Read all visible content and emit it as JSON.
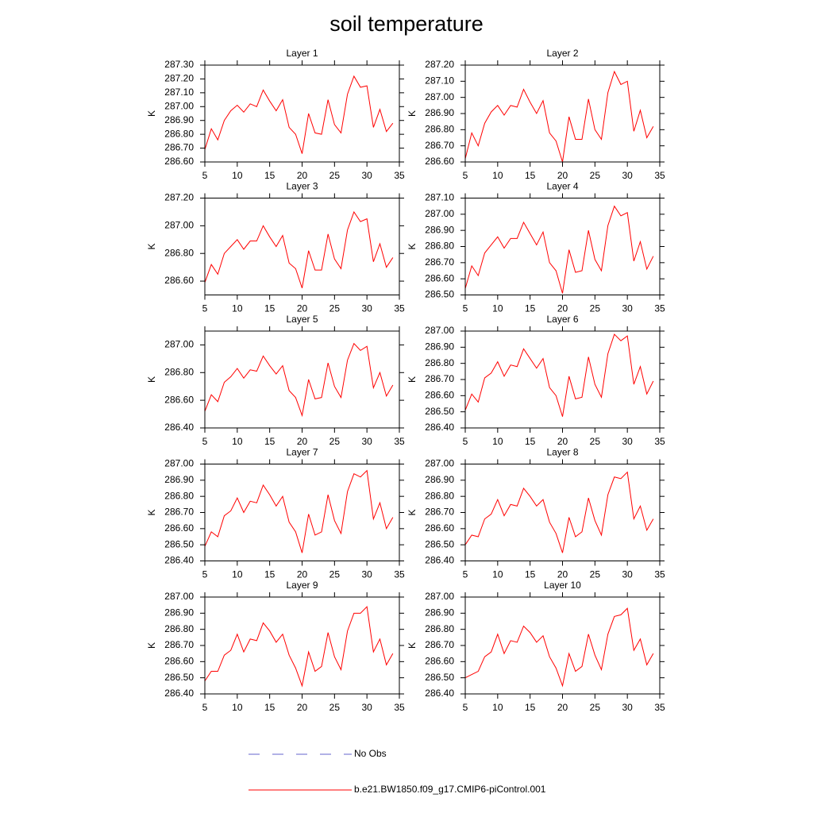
{
  "title": "soil temperature",
  "legend": [
    {
      "label": "No Obs",
      "color": "#6666cc",
      "dash": true
    },
    {
      "label": "b.e21.BW1850.f09_g17.CMIP6-piControl.001",
      "color": "#ff0000",
      "dash": false
    }
  ],
  "chart_data": [
    {
      "type": "line",
      "title": "Layer 1",
      "ylabel": "K",
      "x": [
        5,
        6,
        7,
        8,
        9,
        10,
        11,
        12,
        13,
        14,
        15,
        16,
        17,
        18,
        19,
        20,
        21,
        22,
        23,
        24,
        25,
        26,
        27,
        28,
        29,
        30,
        31,
        32,
        33,
        34
      ],
      "series": [
        {
          "color": "#ff0000",
          "values": [
            286.69,
            286.84,
            286.76,
            286.9,
            286.97,
            287.01,
            286.96,
            287.02,
            287.0,
            287.12,
            287.04,
            286.97,
            287.05,
            286.85,
            286.8,
            286.66,
            286.95,
            286.81,
            286.8,
            287.05,
            286.87,
            286.81,
            287.09,
            287.22,
            287.14,
            287.15,
            286.85,
            286.98,
            286.82,
            286.88
          ]
        }
      ],
      "xlim": [
        5,
        35
      ],
      "xticks": [
        5,
        10,
        15,
        20,
        25,
        30,
        35
      ],
      "ylim": [
        286.6,
        287.3
      ],
      "yticks": [
        {
          "value": 286.6,
          "label": "286.60"
        },
        {
          "value": 286.7,
          "label": "286.70"
        },
        {
          "value": 286.8,
          "label": "286.80"
        },
        {
          "value": 286.9,
          "label": "286.90"
        },
        {
          "value": 287.0,
          "label": "287.00"
        },
        {
          "value": 287.1,
          "label": "287.10"
        },
        {
          "value": 287.2,
          "label": "287.20"
        },
        {
          "value": 287.3,
          "label": "287.30"
        }
      ]
    },
    {
      "type": "line",
      "title": "Layer 2",
      "ylabel": "K",
      "x": [
        5,
        6,
        7,
        8,
        9,
        10,
        11,
        12,
        13,
        14,
        15,
        16,
        17,
        18,
        19,
        20,
        21,
        22,
        23,
        24,
        25,
        26,
        27,
        28,
        29,
        30,
        31,
        32,
        33,
        34
      ],
      "series": [
        {
          "color": "#ff0000",
          "values": [
            286.62,
            286.78,
            286.7,
            286.84,
            286.91,
            286.95,
            286.89,
            286.95,
            286.94,
            287.05,
            286.97,
            286.9,
            286.98,
            286.78,
            286.73,
            286.6,
            286.88,
            286.74,
            286.74,
            286.99,
            286.8,
            286.74,
            287.03,
            287.16,
            287.08,
            287.1,
            286.79,
            286.92,
            286.75,
            286.82
          ]
        }
      ],
      "xlim": [
        5,
        35
      ],
      "xticks": [
        5,
        10,
        15,
        20,
        25,
        30,
        35
      ],
      "ylim": [
        286.6,
        287.2
      ],
      "yticks": [
        {
          "value": 286.6,
          "label": "286.60"
        },
        {
          "value": 286.7,
          "label": "286.70"
        },
        {
          "value": 286.8,
          "label": "286.80"
        },
        {
          "value": 286.9,
          "label": "286.90"
        },
        {
          "value": 287.0,
          "label": "287.00"
        },
        {
          "value": 287.1,
          "label": "287.10"
        },
        {
          "value": 287.2,
          "label": "287.20"
        }
      ]
    },
    {
      "type": "line",
      "title": "Layer 3",
      "ylabel": "K",
      "x": [
        5,
        6,
        7,
        8,
        9,
        10,
        11,
        12,
        13,
        14,
        15,
        16,
        17,
        18,
        19,
        20,
        21,
        22,
        23,
        24,
        25,
        26,
        27,
        28,
        29,
        30,
        31,
        32,
        33,
        34
      ],
      "series": [
        {
          "color": "#ff0000",
          "values": [
            286.59,
            286.72,
            286.65,
            286.8,
            286.85,
            286.9,
            286.83,
            286.89,
            286.89,
            287.0,
            286.92,
            286.85,
            286.93,
            286.73,
            286.69,
            286.55,
            286.82,
            286.68,
            286.68,
            286.94,
            286.76,
            286.69,
            286.97,
            287.1,
            287.03,
            287.05,
            286.74,
            286.87,
            286.7,
            286.77
          ]
        }
      ],
      "xlim": [
        5,
        35
      ],
      "xticks": [
        5,
        10,
        15,
        20,
        25,
        30,
        35
      ],
      "ylim": [
        286.5,
        287.2
      ],
      "yticks": [
        {
          "value": 286.6,
          "label": "286.60"
        },
        {
          "value": 286.8,
          "label": "286.80"
        },
        {
          "value": 287.0,
          "label": "287.00"
        },
        {
          "value": 287.2,
          "label": "287.20"
        }
      ]
    },
    {
      "type": "line",
      "title": "Layer 4",
      "ylabel": "K",
      "x": [
        5,
        6,
        7,
        8,
        9,
        10,
        11,
        12,
        13,
        14,
        15,
        16,
        17,
        18,
        19,
        20,
        21,
        22,
        23,
        24,
        25,
        26,
        27,
        28,
        29,
        30,
        31,
        32,
        33,
        34
      ],
      "series": [
        {
          "color": "#ff0000",
          "values": [
            286.54,
            286.68,
            286.62,
            286.76,
            286.81,
            286.86,
            286.79,
            286.85,
            286.85,
            286.95,
            286.88,
            286.81,
            286.89,
            286.7,
            286.65,
            286.51,
            286.78,
            286.64,
            286.65,
            286.9,
            286.72,
            286.65,
            286.93,
            287.05,
            286.99,
            287.01,
            286.71,
            286.83,
            286.66,
            286.74
          ]
        }
      ],
      "xlim": [
        5,
        35
      ],
      "xticks": [
        5,
        10,
        15,
        20,
        25,
        30,
        35
      ],
      "ylim": [
        286.5,
        287.1
      ],
      "yticks": [
        {
          "value": 286.5,
          "label": "286.50"
        },
        {
          "value": 286.6,
          "label": "286.60"
        },
        {
          "value": 286.7,
          "label": "286.70"
        },
        {
          "value": 286.8,
          "label": "286.80"
        },
        {
          "value": 286.9,
          "label": "286.90"
        },
        {
          "value": 287.0,
          "label": "287.00"
        },
        {
          "value": 287.1,
          "label": "287.10"
        }
      ]
    },
    {
      "type": "line",
      "title": "Layer 5",
      "ylabel": "K",
      "x": [
        5,
        6,
        7,
        8,
        9,
        10,
        11,
        12,
        13,
        14,
        15,
        16,
        17,
        18,
        19,
        20,
        21,
        22,
        23,
        24,
        25,
        26,
        27,
        28,
        29,
        30,
        31,
        32,
        33,
        34
      ],
      "series": [
        {
          "color": "#ff0000",
          "values": [
            286.52,
            286.64,
            286.59,
            286.73,
            286.77,
            286.83,
            286.76,
            286.82,
            286.81,
            286.92,
            286.85,
            286.79,
            286.85,
            286.67,
            286.62,
            286.49,
            286.75,
            286.61,
            286.62,
            286.87,
            286.7,
            286.62,
            286.89,
            287.01,
            286.96,
            286.99,
            286.69,
            286.8,
            286.63,
            286.71
          ]
        }
      ],
      "xlim": [
        5,
        35
      ],
      "xticks": [
        5,
        10,
        15,
        20,
        25,
        30,
        35
      ],
      "ylim": [
        286.4,
        287.1
      ],
      "yticks": [
        {
          "value": 286.4,
          "label": "286.40"
        },
        {
          "value": 286.6,
          "label": "286.60"
        },
        {
          "value": 286.8,
          "label": "286.80"
        },
        {
          "value": 287.0,
          "label": "287.00"
        }
      ]
    },
    {
      "type": "line",
      "title": "Layer 6",
      "ylabel": "K",
      "x": [
        5,
        6,
        7,
        8,
        9,
        10,
        11,
        12,
        13,
        14,
        15,
        16,
        17,
        18,
        19,
        20,
        21,
        22,
        23,
        24,
        25,
        26,
        27,
        28,
        29,
        30,
        31,
        32,
        33,
        34
      ],
      "series": [
        {
          "color": "#ff0000",
          "values": [
            286.51,
            286.61,
            286.56,
            286.71,
            286.74,
            286.81,
            286.72,
            286.79,
            286.78,
            286.89,
            286.83,
            286.77,
            286.83,
            286.65,
            286.6,
            286.47,
            286.72,
            286.58,
            286.59,
            286.84,
            286.67,
            286.59,
            286.86,
            286.98,
            286.94,
            286.97,
            286.67,
            286.78,
            286.61,
            286.69
          ]
        }
      ],
      "xlim": [
        5,
        35
      ],
      "xticks": [
        5,
        10,
        15,
        20,
        25,
        30,
        35
      ],
      "ylim": [
        286.4,
        287.0
      ],
      "yticks": [
        {
          "value": 286.4,
          "label": "286.40"
        },
        {
          "value": 286.5,
          "label": "286.50"
        },
        {
          "value": 286.6,
          "label": "286.60"
        },
        {
          "value": 286.7,
          "label": "286.70"
        },
        {
          "value": 286.8,
          "label": "286.80"
        },
        {
          "value": 286.9,
          "label": "286.90"
        },
        {
          "value": 287.0,
          "label": "287.00"
        }
      ]
    },
    {
      "type": "line",
      "title": "Layer 7",
      "ylabel": "K",
      "x": [
        5,
        6,
        7,
        8,
        9,
        10,
        11,
        12,
        13,
        14,
        15,
        16,
        17,
        18,
        19,
        20,
        21,
        22,
        23,
        24,
        25,
        26,
        27,
        28,
        29,
        30,
        31,
        32,
        33,
        34
      ],
      "series": [
        {
          "color": "#ff0000",
          "values": [
            286.49,
            286.58,
            286.55,
            286.68,
            286.71,
            286.79,
            286.7,
            286.77,
            286.76,
            286.87,
            286.81,
            286.74,
            286.8,
            286.64,
            286.58,
            286.45,
            286.69,
            286.56,
            286.58,
            286.81,
            286.65,
            286.57,
            286.83,
            286.94,
            286.92,
            286.96,
            286.66,
            286.76,
            286.6,
            286.67
          ]
        }
      ],
      "xlim": [
        5,
        35
      ],
      "xticks": [
        5,
        10,
        15,
        20,
        25,
        30,
        35
      ],
      "ylim": [
        286.4,
        287.0
      ],
      "yticks": [
        {
          "value": 286.4,
          "label": "286.40"
        },
        {
          "value": 286.5,
          "label": "286.50"
        },
        {
          "value": 286.6,
          "label": "286.60"
        },
        {
          "value": 286.7,
          "label": "286.70"
        },
        {
          "value": 286.8,
          "label": "286.80"
        },
        {
          "value": 286.9,
          "label": "286.90"
        },
        {
          "value": 287.0,
          "label": "287.00"
        }
      ]
    },
    {
      "type": "line",
      "title": "Layer 8",
      "ylabel": "K",
      "x": [
        5,
        6,
        7,
        8,
        9,
        10,
        11,
        12,
        13,
        14,
        15,
        16,
        17,
        18,
        19,
        20,
        21,
        22,
        23,
        24,
        25,
        26,
        27,
        28,
        29,
        30,
        31,
        32,
        33,
        34
      ],
      "series": [
        {
          "color": "#ff0000",
          "values": [
            286.5,
            286.56,
            286.55,
            286.66,
            286.69,
            286.78,
            286.68,
            286.75,
            286.74,
            286.85,
            286.8,
            286.74,
            286.78,
            286.64,
            286.57,
            286.45,
            286.67,
            286.55,
            286.58,
            286.79,
            286.65,
            286.56,
            286.81,
            286.92,
            286.91,
            286.95,
            286.66,
            286.74,
            286.59,
            286.66
          ]
        }
      ],
      "xlim": [
        5,
        35
      ],
      "xticks": [
        5,
        10,
        15,
        20,
        25,
        30,
        35
      ],
      "ylim": [
        286.4,
        287.0
      ],
      "yticks": [
        {
          "value": 286.4,
          "label": "286.40"
        },
        {
          "value": 286.5,
          "label": "286.50"
        },
        {
          "value": 286.6,
          "label": "286.60"
        },
        {
          "value": 286.7,
          "label": "286.70"
        },
        {
          "value": 286.8,
          "label": "286.80"
        },
        {
          "value": 286.9,
          "label": "286.90"
        },
        {
          "value": 287.0,
          "label": "287.00"
        }
      ]
    },
    {
      "type": "line",
      "title": "Layer 9",
      "ylabel": "K",
      "x": [
        5,
        6,
        7,
        8,
        9,
        10,
        11,
        12,
        13,
        14,
        15,
        16,
        17,
        18,
        19,
        20,
        21,
        22,
        23,
        24,
        25,
        26,
        27,
        28,
        29,
        30,
        31,
        32,
        33,
        34
      ],
      "series": [
        {
          "color": "#ff0000",
          "values": [
            286.48,
            286.54,
            286.54,
            286.64,
            286.67,
            286.77,
            286.66,
            286.74,
            286.73,
            286.84,
            286.79,
            286.72,
            286.77,
            286.64,
            286.56,
            286.45,
            286.66,
            286.54,
            286.57,
            286.78,
            286.63,
            286.55,
            286.79,
            286.9,
            286.9,
            286.94,
            286.66,
            286.74,
            286.58,
            286.65
          ]
        }
      ],
      "xlim": [
        5,
        35
      ],
      "xticks": [
        5,
        10,
        15,
        20,
        25,
        30,
        35
      ],
      "ylim": [
        286.4,
        287.0
      ],
      "yticks": [
        {
          "value": 286.4,
          "label": "286.40"
        },
        {
          "value": 286.5,
          "label": "286.50"
        },
        {
          "value": 286.6,
          "label": "286.60"
        },
        {
          "value": 286.7,
          "label": "286.70"
        },
        {
          "value": 286.8,
          "label": "286.80"
        },
        {
          "value": 286.9,
          "label": "286.90"
        },
        {
          "value": 287.0,
          "label": "287.00"
        }
      ]
    },
    {
      "type": "line",
      "title": "Layer 10",
      "ylabel": "K",
      "x": [
        5,
        6,
        7,
        8,
        9,
        10,
        11,
        12,
        13,
        14,
        15,
        16,
        17,
        18,
        19,
        20,
        21,
        22,
        23,
        24,
        25,
        26,
        27,
        28,
        29,
        30,
        31,
        32,
        33,
        34
      ],
      "series": [
        {
          "color": "#ff0000",
          "values": [
            286.5,
            286.52,
            286.54,
            286.63,
            286.66,
            286.77,
            286.65,
            286.73,
            286.72,
            286.82,
            286.78,
            286.72,
            286.76,
            286.63,
            286.56,
            286.45,
            286.65,
            286.54,
            286.57,
            286.77,
            286.64,
            286.55,
            286.77,
            286.88,
            286.89,
            286.93,
            286.67,
            286.74,
            286.58,
            286.65
          ]
        }
      ],
      "xlim": [
        5,
        35
      ],
      "xticks": [
        5,
        10,
        15,
        20,
        25,
        30,
        35
      ],
      "ylim": [
        286.4,
        287.0
      ],
      "yticks": [
        {
          "value": 286.4,
          "label": "286.40"
        },
        {
          "value": 286.5,
          "label": "286.50"
        },
        {
          "value": 286.6,
          "label": "286.60"
        },
        {
          "value": 286.7,
          "label": "286.70"
        },
        {
          "value": 286.8,
          "label": "286.80"
        },
        {
          "value": 286.9,
          "label": "286.90"
        },
        {
          "value": 287.0,
          "label": "287.00"
        }
      ]
    }
  ]
}
